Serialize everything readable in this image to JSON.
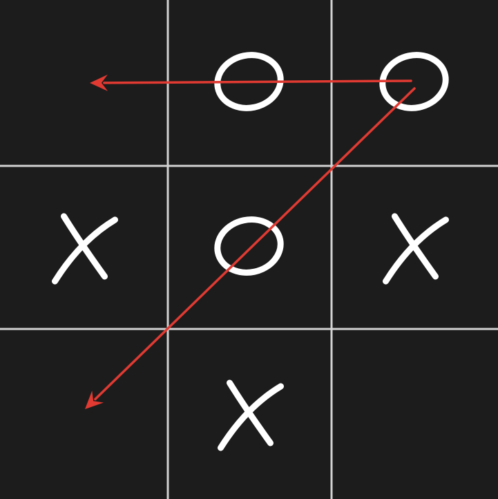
{
  "game": {
    "name": "tic-tac-toe",
    "rows": 3,
    "cols": 3,
    "board": [
      [
        "",
        "O",
        "O"
      ],
      [
        "X",
        "O",
        "X"
      ],
      [
        "",
        "X",
        ""
      ]
    ]
  },
  "colors": {
    "background": "#1c1c1c",
    "grid": "#d2d2d2",
    "marks": "#ffffff",
    "arrows": "#e03a32"
  },
  "annotations": {
    "arrows": [
      {
        "from": {
          "row": 0,
          "col": 2
        },
        "to": {
          "row": 0,
          "col": 0
        }
      },
      {
        "from": {
          "row": 0,
          "col": 2
        },
        "to": {
          "row": 2,
          "col": 0
        }
      }
    ]
  }
}
